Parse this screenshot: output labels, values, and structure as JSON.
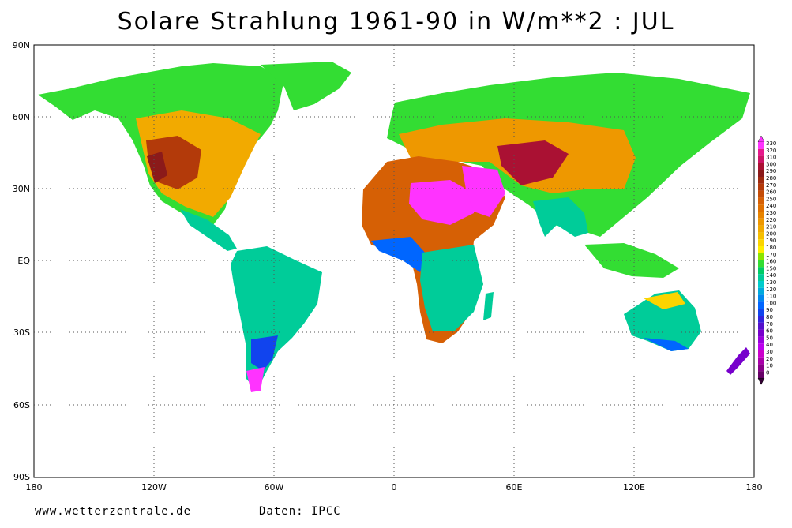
{
  "title": "Solare Strahlung 1961-90 in W/m**2 : JUL",
  "footer": {
    "website": "www.wetterzentrale.de",
    "source": "Daten: IPCC"
  },
  "axes": {
    "x_ticks": [
      "180",
      "120W",
      "60W",
      "0",
      "60E",
      "120E",
      "180"
    ],
    "y_ticks": [
      "90N",
      "60N",
      "30N",
      "EQ",
      "30S",
      "60S",
      "90S"
    ]
  },
  "legend": {
    "levels": [
      "330",
      "320",
      "310",
      "300",
      "290",
      "280",
      "270",
      "260",
      "250",
      "240",
      "230",
      "220",
      "210",
      "200",
      "190",
      "180",
      "170",
      "160",
      "150",
      "140",
      "130",
      "120",
      "110",
      "100",
      "90",
      "80",
      "70",
      "60",
      "50",
      "40",
      "30",
      "20",
      "10",
      "0"
    ],
    "colors": [
      "#ff33ff",
      "#e6198c",
      "#cc1466",
      "#aa1133",
      "#8b1a1a",
      "#9e2a0f",
      "#b33a0a",
      "#c44d08",
      "#d66005",
      "#e07000",
      "#e88400",
      "#ee9800",
      "#f2aa00",
      "#f6bf00",
      "#fbd400",
      "#ffee00",
      "#8ce600",
      "#33dd33",
      "#00cc66",
      "#00cc99",
      "#00cccc",
      "#00aadd",
      "#0088ee",
      "#0066ff",
      "#1144ee",
      "#3322dd",
      "#5511cc",
      "#7700cc",
      "#9900dd",
      "#bb00ee",
      "#cc00cc",
      "#aa00aa",
      "#880088",
      "#660066"
    ]
  },
  "colors": {
    "ocean": "#ffffff",
    "grid": "#555555"
  }
}
